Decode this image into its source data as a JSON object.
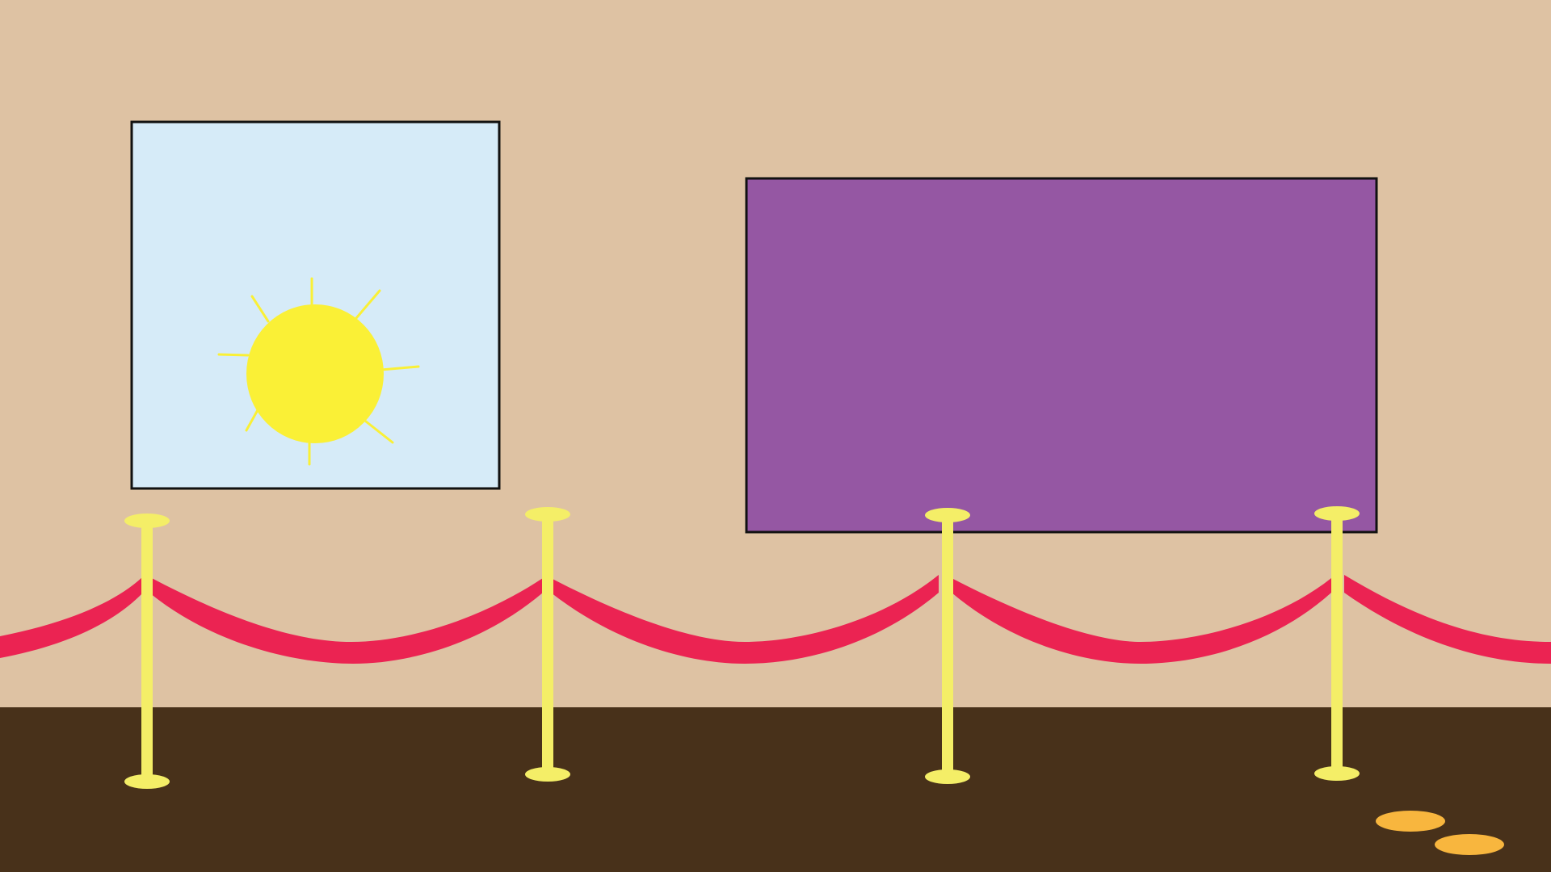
{
  "scene": {
    "name": "art-gallery-room",
    "colors": {
      "wall": "#DEC2A3",
      "floor": "#48311A",
      "frame_border": "#111111",
      "sky_painting_bg": "#D6EBF8",
      "sun": "#FAF036",
      "purple_painting": "#9557A3",
      "rope": "#EB2352",
      "stanchion": "#F4EE67",
      "coin": "#F8B63E"
    }
  },
  "paintings": [
    {
      "id": "sun-painting",
      "subject": "sun",
      "icon": "sun-icon"
    },
    {
      "id": "purple-painting",
      "subject": "blank-purple-canvas"
    }
  ],
  "stanchions": {
    "count": 4
  },
  "floor_items": [
    {
      "id": "coin-1",
      "icon": "coin-icon"
    },
    {
      "id": "coin-2",
      "icon": "coin-icon"
    }
  ]
}
